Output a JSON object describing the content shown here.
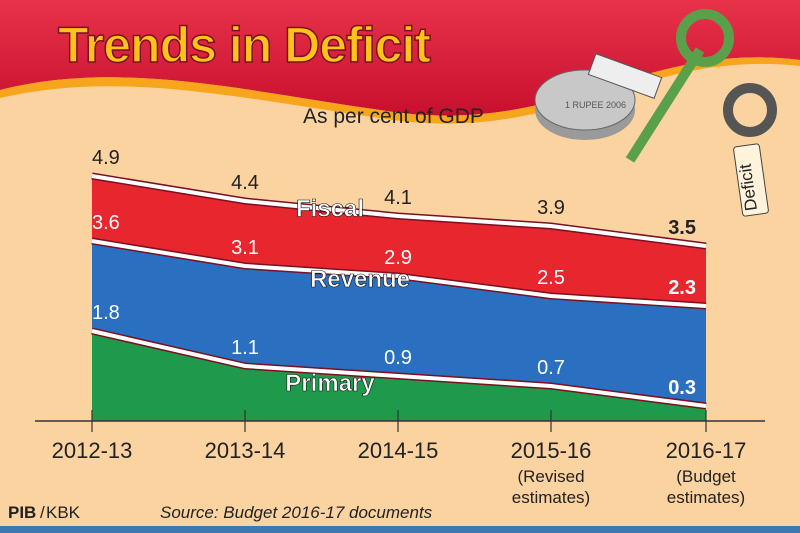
{
  "chart_data": {
    "type": "area",
    "title": "Trends in Deficit",
    "subtitle": "As per cent of GDP",
    "categories": [
      "2012-13",
      "2013-14",
      "2014-15",
      "2015-16",
      "2016-17"
    ],
    "category_notes": [
      "",
      "",
      "",
      "(Revised estimates)",
      "(Budget estimates)"
    ],
    "category_notes_lines": [
      [
        "",
        ""
      ],
      [
        "",
        ""
      ],
      [
        "",
        ""
      ],
      [
        "(Revised",
        "estimates)"
      ],
      [
        "(Budget",
        "estimates)"
      ]
    ],
    "series": [
      {
        "name": "Fiscal",
        "values": [
          4.9,
          4.4,
          4.1,
          3.9,
          3.5
        ],
        "labels": [
          "4.9",
          "4.4",
          "4.1",
          "3.9",
          "3.5"
        ],
        "color": "#e8262e"
      },
      {
        "name": "Revenue",
        "values": [
          3.6,
          3.1,
          2.9,
          2.5,
          2.3
        ],
        "labels": [
          "3.6",
          "3.1",
          "2.9",
          "2.5",
          "2.3"
        ],
        "color": "#2a6fc0"
      },
      {
        "name": "Primary",
        "values": [
          1.8,
          1.1,
          0.9,
          0.7,
          0.3
        ],
        "labels": [
          "1.8",
          "1.1",
          "0.9",
          "0.7",
          "0.3"
        ],
        "color": "#1f9a4c"
      }
    ],
    "ylim": [
      0,
      5.5
    ],
    "grid": false,
    "xlabel": "",
    "ylabel": "As per cent of GDP"
  },
  "credit": {
    "agency": "PIB",
    "separator": "/",
    "author": "KBK"
  },
  "source": "Source: Budget 2016-17 documents",
  "illustration": {
    "tag_text": "Deficit",
    "coin_text": "1 RUPEE 2006"
  },
  "colors": {
    "background": "#fbd3a0",
    "banner": "#d81e3c",
    "title": "#ffc21a"
  }
}
